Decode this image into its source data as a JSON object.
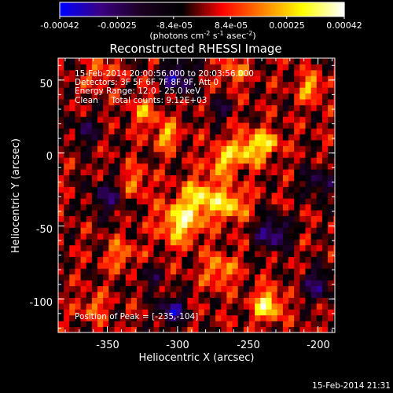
{
  "chart_data": {
    "type": "heatmap",
    "title": "Reconstructed RHESSI Image",
    "colorbar": {
      "ticks": [
        "-0.00042",
        "-0.00025",
        "-8.4e-05",
        "8.4e-05",
        "0.00025",
        "0.00042"
      ],
      "values": [
        -0.00042,
        -0.00025,
        -8.4e-05,
        8.4e-05,
        0.00025,
        0.00042
      ],
      "range": [
        -0.00042,
        0.00042
      ],
      "label": "(photons cm",
      "label_sup1": "-2",
      "label_mid": " s",
      "label_sup2": "-1",
      "label_end": " asec",
      "label_sup3": "-2",
      "label_close": ")"
    },
    "xlabel": "Heliocentric X (arcsec)",
    "ylabel": "Heliocentric Y (arcsec)",
    "xlim": [
      -385,
      -188
    ],
    "ylim": [
      -123,
      65
    ],
    "xticks": [
      -350,
      -300,
      -250,
      -200
    ],
    "yticks": [
      -100,
      -50,
      0,
      50
    ],
    "xticklabels": [
      "-350",
      "-300",
      "-250",
      "-200"
    ],
    "yticklabels": [
      "-100",
      "-50",
      "0",
      "50"
    ],
    "info_lines": [
      "15-Feb-2014 20:00:56.000 to 20:03:56.000",
      "Detectors: 3F 5F 6F 7F 8F 9F, Att 0",
      "Energy Range: 12.0 - 25.0 keV",
      "Clean     Total counts: 9.12E+03"
    ],
    "peak_text": "Position of Peak = [-235,-104]",
    "peak": [
      -235,
      -104
    ],
    "timestamp": "15-Feb-2014 21:31",
    "colors": {
      "background": "#000000",
      "text": "#ffffff",
      "colormap": [
        "#0000ff",
        "#3a0080",
        "#1a0020",
        "#000000",
        "#ff0000",
        "#ff8000",
        "#ffff00",
        "#ffffff"
      ]
    },
    "features": [
      {
        "x": -236,
        "y": -104,
        "amp": 1.0,
        "sigma": 7
      },
      {
        "x": -298,
        "y": -47,
        "amp": 0.9,
        "sigma": 10
      },
      {
        "x": -283,
        "y": -30,
        "amp": 0.8,
        "sigma": 9
      },
      {
        "x": -262,
        "y": -35,
        "amp": 0.75,
        "sigma": 8
      },
      {
        "x": -250,
        "y": 3,
        "amp": 0.8,
        "sigma": 8
      },
      {
        "x": -268,
        "y": -5,
        "amp": 0.7,
        "sigma": 7
      },
      {
        "x": -235,
        "y": 7,
        "amp": 0.65,
        "sigma": 6
      },
      {
        "x": -308,
        "y": 12,
        "amp": 0.7,
        "sigma": 6
      },
      {
        "x": -323,
        "y": 28,
        "amp": 0.5,
        "sigma": 7
      },
      {
        "x": -330,
        "y": -20,
        "amp": 0.5,
        "sigma": 7
      },
      {
        "x": -270,
        "y": -80,
        "amp": 0.6,
        "sigma": 8
      },
      {
        "x": -205,
        "y": 45,
        "amp": 0.7,
        "sigma": 6
      },
      {
        "x": -260,
        "y": 55,
        "amp": 0.55,
        "sigma": 6
      },
      {
        "x": -355,
        "y": 55,
        "amp": 0.5,
        "sigma": 6
      },
      {
        "x": -340,
        "y": -70,
        "amp": 0.5,
        "sigma": 7
      },
      {
        "x": -360,
        "y": -105,
        "amp": 0.5,
        "sigma": 6
      },
      {
        "x": -232,
        "y": -55,
        "amp": -0.9,
        "sigma": 8
      },
      {
        "x": -300,
        "y": 52,
        "amp": -0.9,
        "sigma": 8
      },
      {
        "x": -304,
        "y": -108,
        "amp": -0.9,
        "sigma": 7
      },
      {
        "x": -350,
        "y": -30,
        "amp": -0.6,
        "sigma": 9
      },
      {
        "x": -200,
        "y": -20,
        "amp": -0.6,
        "sigma": 8
      },
      {
        "x": -200,
        "y": -90,
        "amp": -0.7,
        "sigma": 8
      },
      {
        "x": -365,
        "y": 15,
        "amp": -0.5,
        "sigma": 8
      },
      {
        "x": -270,
        "y": 30,
        "amp": -0.5,
        "sigma": 6
      },
      {
        "x": -320,
        "y": -85,
        "amp": -0.5,
        "sigma": 6
      }
    ]
  }
}
